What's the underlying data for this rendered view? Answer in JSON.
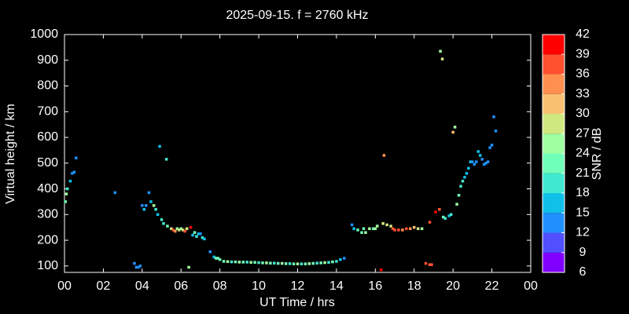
{
  "chart_data": {
    "type": "scatter",
    "title": "2025-09-15. f = 2760 kHz",
    "x_label": "UT Time / hrs",
    "y_label": "Virtual height / km",
    "xlim": [
      0,
      24
    ],
    "ylim": [
      75,
      1000
    ],
    "xticks": [
      {
        "value": 0,
        "label": "00"
      },
      {
        "value": 2,
        "label": "02"
      },
      {
        "value": 4,
        "label": "04"
      },
      {
        "value": 6,
        "label": "06"
      },
      {
        "value": 8,
        "label": "08"
      },
      10,
      12,
      14,
      16,
      18,
      20,
      22,
      {
        "value": 24,
        "label": "00"
      }
    ],
    "yticks": [
      100,
      200,
      300,
      400,
      500,
      600,
      700,
      800,
      900,
      1000
    ],
    "colorbar": {
      "label": "SNR / dB",
      "lim": [
        6,
        42
      ],
      "ticks": [
        6,
        9,
        12,
        15,
        18,
        21,
        24,
        27,
        30,
        33,
        36,
        39,
        42
      ],
      "colors": [
        "#8000ff",
        "#5050ff",
        "#2090ff",
        "#10c0e8",
        "#40e8d0",
        "#70ffb8",
        "#a0ffa0",
        "#d0e880",
        "#f8c070",
        "#ff9050",
        "#ff5030",
        "#ff0000"
      ]
    },
    "x": [
      0.05,
      0.1,
      0.15,
      0.3,
      0.4,
      0.5,
      0.6,
      2.6,
      3.6,
      3.7,
      3.8,
      3.9,
      4.0,
      4.1,
      4.2,
      4.35,
      4.45,
      4.6,
      4.7,
      4.8,
      4.9,
      5.0,
      5.1,
      5.25,
      5.3,
      5.5,
      5.6,
      5.7,
      5.8,
      5.9,
      6.0,
      6.1,
      6.2,
      6.3,
      6.4,
      6.5,
      6.6,
      6.7,
      6.8,
      6.9,
      7.0,
      7.1,
      7.2,
      7.5,
      7.7,
      7.8,
      7.9,
      8.0,
      8.2,
      8.4,
      8.6,
      8.8,
      9.0,
      9.2,
      9.4,
      9.6,
      9.8,
      10.0,
      10.2,
      10.4,
      10.6,
      10.8,
      11.0,
      11.2,
      11.4,
      11.6,
      11.8,
      12.0,
      12.2,
      12.4,
      12.6,
      12.8,
      13.0,
      13.2,
      13.4,
      13.6,
      13.8,
      14.0,
      14.2,
      14.4,
      14.8,
      14.9,
      15.1,
      15.3,
      15.4,
      15.5,
      15.7,
      15.9,
      16.0,
      16.1,
      16.3,
      16.4,
      16.45,
      16.6,
      16.8,
      16.9,
      17.0,
      17.2,
      17.4,
      17.6,
      17.8,
      18.0,
      18.2,
      18.4,
      18.6,
      18.8,
      18.9,
      18.8,
      19.1,
      19.3,
      19.35,
      19.45,
      19.5,
      19.6,
      19.8,
      19.9,
      20.0,
      20.1,
      20.2,
      20.3,
      20.4,
      20.5,
      20.6,
      20.7,
      20.8,
      20.9,
      21.0,
      21.1,
      21.2,
      21.3,
      21.4,
      21.5,
      21.6,
      21.7,
      21.8,
      21.9,
      22.0,
      22.1,
      22.2
    ],
    "y": [
      350,
      380,
      400,
      430,
      460,
      465,
      520,
      385,
      110,
      95,
      95,
      100,
      335,
      320,
      335,
      385,
      350,
      335,
      320,
      300,
      565,
      280,
      265,
      515,
      255,
      245,
      240,
      235,
      245,
      240,
      245,
      240,
      235,
      245,
      95,
      250,
      220,
      230,
      215,
      225,
      225,
      210,
      205,
      155,
      135,
      130,
      130,
      125,
      118,
      117,
      116,
      116,
      115,
      115,
      115,
      114,
      114,
      113,
      112,
      112,
      111,
      111,
      110,
      110,
      109,
      109,
      108,
      108,
      108,
      108,
      109,
      110,
      111,
      112,
      113,
      114,
      116,
      118,
      125,
      130,
      260,
      245,
      240,
      230,
      245,
      230,
      245,
      245,
      245,
      255,
      85,
      265,
      530,
      260,
      255,
      245,
      240,
      240,
      240,
      245,
      245,
      250,
      245,
      245,
      110,
      105,
      105,
      270,
      310,
      320,
      935,
      905,
      290,
      285,
      295,
      300,
      620,
      640,
      340,
      375,
      410,
      430,
      445,
      460,
      480,
      505,
      505,
      495,
      505,
      545,
      530,
      515,
      495,
      500,
      505,
      560,
      570,
      680,
      625
    ],
    "snr": [
      21,
      24,
      18,
      15,
      12,
      12,
      12,
      12,
      12,
      12,
      12,
      12,
      12,
      15,
      12,
      12,
      15,
      24,
      18,
      15,
      15,
      18,
      18,
      18,
      21,
      27,
      36,
      33,
      24,
      27,
      24,
      27,
      36,
      27,
      24,
      39,
      15,
      21,
      18,
      15,
      12,
      18,
      15,
      12,
      15,
      21,
      21,
      21,
      21,
      24,
      18,
      21,
      24,
      21,
      18,
      24,
      21,
      18,
      21,
      24,
      21,
      18,
      21,
      24,
      21,
      18,
      21,
      24,
      18,
      21,
      24,
      21,
      18,
      21,
      24,
      18,
      21,
      18,
      15,
      12,
      12,
      15,
      21,
      21,
      21,
      24,
      24,
      21,
      24,
      24,
      39,
      27,
      33,
      27,
      27,
      36,
      36,
      36,
      33,
      36,
      33,
      30,
      27,
      24,
      36,
      36,
      36,
      36,
      39,
      36,
      24,
      27,
      21,
      18,
      15,
      18,
      30,
      24,
      24,
      21,
      18,
      18,
      15,
      15,
      15,
      15,
      12,
      12,
      12,
      15,
      15,
      12,
      12,
      12,
      12,
      12,
      12,
      12,
      12
    ]
  }
}
